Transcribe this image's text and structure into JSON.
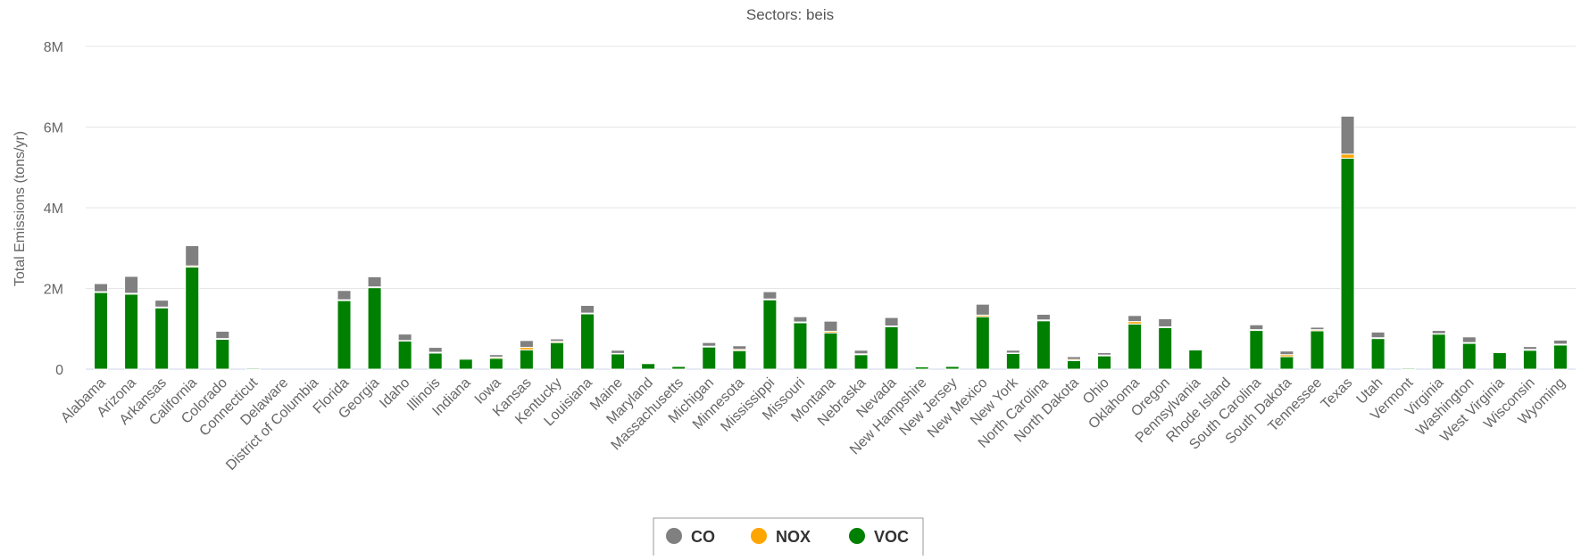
{
  "chart_data": {
    "type": "bar",
    "stacked": true,
    "title": "Sectors: beis",
    "ylabel": "Total Emissions (tons/yr)",
    "xlabel": "",
    "ylim": [
      0,
      8000000
    ],
    "y_ticks": [
      {
        "value": 0,
        "label": "0"
      },
      {
        "value": 2000000,
        "label": "2M"
      },
      {
        "value": 4000000,
        "label": "4M"
      },
      {
        "value": 6000000,
        "label": "6M"
      },
      {
        "value": 8000000,
        "label": "8M"
      }
    ],
    "grid": true,
    "legend_position": "bottom-center",
    "categories": [
      "Alabama",
      "Arizona",
      "Arkansas",
      "California",
      "Colorado",
      "Connecticut",
      "Delaware",
      "District of Columbia",
      "Florida",
      "Georgia",
      "Idaho",
      "Illinois",
      "Indiana",
      "Iowa",
      "Kansas",
      "Kentucky",
      "Louisiana",
      "Maine",
      "Maryland",
      "Massachusetts",
      "Michigan",
      "Minnesota",
      "Mississippi",
      "Missouri",
      "Montana",
      "Nebraska",
      "Nevada",
      "New Hampshire",
      "New Jersey",
      "New Mexico",
      "New York",
      "North Carolina",
      "North Dakota",
      "Ohio",
      "Oklahoma",
      "Oregon",
      "Pennsylvania",
      "Rhode Island",
      "South Carolina",
      "South Dakota",
      "Tennessee",
      "Texas",
      "Utah",
      "Vermont",
      "Virginia",
      "Washington",
      "West Virginia",
      "Wisconsin",
      "Wyoming"
    ],
    "series": [
      {
        "name": "VOC",
        "color": "#008000",
        "values": [
          1900000,
          1860000,
          1520000,
          2530000,
          740000,
          30000,
          0,
          0,
          1700000,
          2020000,
          700000,
          400000,
          250000,
          270000,
          480000,
          660000,
          1370000,
          380000,
          140000,
          70000,
          550000,
          460000,
          1720000,
          1150000,
          900000,
          360000,
          1050000,
          60000,
          70000,
          1300000,
          390000,
          1200000,
          210000,
          330000,
          1120000,
          1030000,
          480000,
          0,
          960000,
          310000,
          950000,
          5230000,
          760000,
          30000,
          870000,
          640000,
          410000,
          470000,
          600000
        ]
      },
      {
        "name": "NOX",
        "color": "#FFA500",
        "values": [
          20000,
          20000,
          20000,
          30000,
          20000,
          0,
          0,
          0,
          20000,
          20000,
          10000,
          20000,
          10000,
          30000,
          60000,
          30000,
          20000,
          10000,
          0,
          0,
          20000,
          30000,
          20000,
          20000,
          40000,
          20000,
          20000,
          0,
          0,
          40000,
          10000,
          20000,
          30000,
          20000,
          60000,
          20000,
          10000,
          0,
          20000,
          50000,
          30000,
          100000,
          20000,
          0,
          10000,
          20000,
          0,
          20000,
          20000
        ]
      },
      {
        "name": "CO",
        "color": "#808080",
        "values": [
          200000,
          420000,
          170000,
          500000,
          180000,
          10000,
          0,
          0,
          230000,
          250000,
          160000,
          120000,
          20000,
          60000,
          170000,
          60000,
          190000,
          80000,
          20000,
          10000,
          90000,
          90000,
          180000,
          130000,
          250000,
          90000,
          210000,
          10000,
          10000,
          270000,
          70000,
          140000,
          70000,
          60000,
          150000,
          200000,
          10000,
          0,
          120000,
          90000,
          60000,
          940000,
          140000,
          10000,
          80000,
          140000,
          10000,
          70000,
          100000
        ]
      }
    ]
  }
}
